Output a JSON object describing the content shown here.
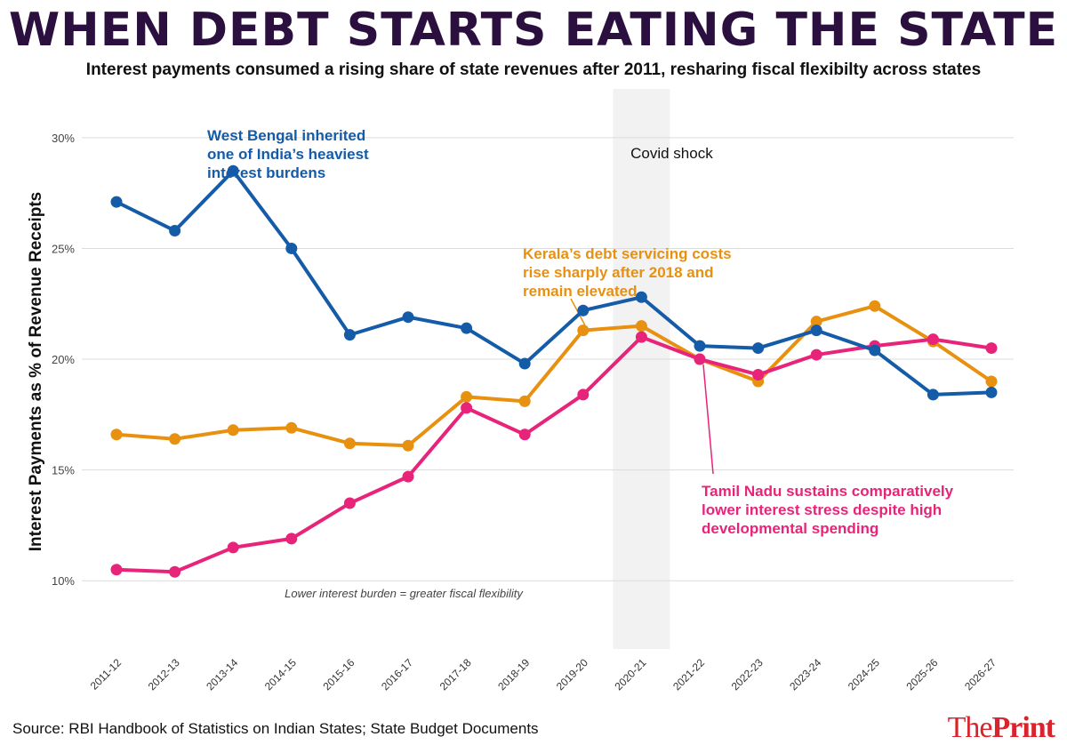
{
  "header": {
    "title": "WHEN DEBT STARTS EATING THE STATE",
    "subtitle": "Interest payments consumed a rising share of state revenues after 2011, resharing fiscal flexibilty across states"
  },
  "footer": {
    "source": "Source: RBI Handbook of Statistics on Indian States; State Budget Documents",
    "brand_prefix": "The",
    "brand_suffix": "Print"
  },
  "chart_data": {
    "type": "line",
    "ylabel": "Interest Payments as % of Revenue Receipts",
    "xlabel": "",
    "ylim": [
      7,
      31.8
    ],
    "yticks": [
      10,
      15,
      20,
      25,
      30
    ],
    "ytick_labels": [
      "10%",
      "15%",
      "20%",
      "25%",
      "30%"
    ],
    "grid": true,
    "categories": [
      "2011-12",
      "2012-13",
      "2013-14",
      "2014-15",
      "2015-16",
      "2016-17",
      "2017-18",
      "2018-19",
      "2019-20",
      "2020-21",
      "2021-22",
      "2022-23",
      "2023-24",
      "2024-25",
      "2025-26",
      "2026-27"
    ],
    "series": [
      {
        "key": "kerala",
        "color": "#e8900f",
        "values": [
          16.6,
          16.4,
          16.8,
          16.9,
          16.2,
          16.1,
          18.3,
          18.1,
          21.3,
          21.5,
          20.0,
          19.0,
          21.7,
          22.4,
          20.8,
          19.0
        ]
      },
      {
        "key": "tamil_nadu",
        "color": "#e8247a",
        "values": [
          10.5,
          10.4,
          11.5,
          11.9,
          13.5,
          14.7,
          17.8,
          16.6,
          18.4,
          21.0,
          20.0,
          19.3,
          20.2,
          20.6,
          20.9,
          20.5
        ]
      },
      {
        "key": "west_bengal",
        "color": "#145ba8",
        "values": [
          27.1,
          25.8,
          28.5,
          25.0,
          21.1,
          21.9,
          21.4,
          19.8,
          22.2,
          22.8,
          20.6,
          20.5,
          21.3,
          20.4,
          18.4,
          18.5
        ]
      }
    ],
    "shaded_region": {
      "category": "2020-21",
      "label": "Covid shock",
      "color": "#f2f2f2"
    },
    "annotations": [
      {
        "key": "west_bengal",
        "color": "#145ba8",
        "lines": [
          "West Bengal inherited",
          "one of India’s heaviest",
          "interest burdens"
        ]
      },
      {
        "key": "kerala",
        "color": "#e8900f",
        "lines": [
          "Kerala’s debt servicing costs",
          "rise sharply after 2018 and",
          "remain elevated"
        ]
      },
      {
        "key": "tamil_nadu",
        "color": "#e8247a",
        "lines": [
          "Tamil Nadu sustains comparatively",
          "lower interest stress despite high",
          "developmental spending"
        ]
      }
    ],
    "note": "Lower interest burden = greater fiscal flexibility"
  }
}
